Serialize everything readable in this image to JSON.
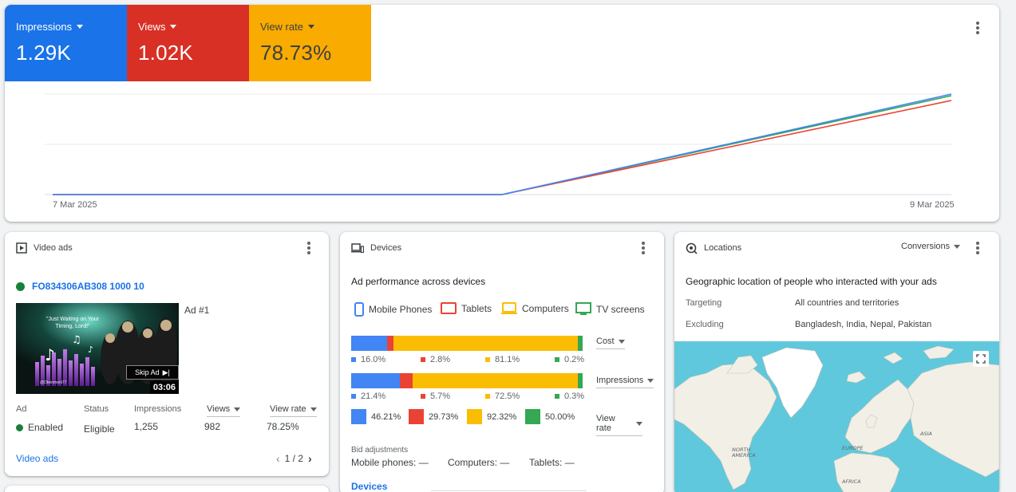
{
  "metrics": [
    {
      "label": "Impressions",
      "value": "1.29K",
      "color": "#1a73e8"
    },
    {
      "label": "Views",
      "value": "1.02K",
      "color": "#d93025"
    },
    {
      "label": "View rate",
      "value": "78.73%",
      "color": "#f9ab00"
    }
  ],
  "chart": {
    "x_start": "7 Mar 2025",
    "x_end": "9 Mar 2025"
  },
  "chart_data": {
    "type": "line",
    "x": [
      "7 Mar 2025",
      "8 Mar 2025",
      "9 Mar 2025"
    ],
    "series": [
      {
        "name": "Impressions",
        "color": "#4285f4",
        "values": [
          0,
          0,
          1290
        ]
      },
      {
        "name": "Views",
        "color": "#ea4335",
        "values": [
          0,
          0,
          1020
        ]
      },
      {
        "name": "View rate",
        "color": "#34a853",
        "values": [
          0,
          0,
          78.73
        ]
      }
    ],
    "grid": true
  },
  "video_ads": {
    "title": "Video ads",
    "campaign": "FO834306AB308 1000 10",
    "ad_label": "Ad #1",
    "thumb_caption": "\"Just Waiting on Your Timing, Lord!\"",
    "thumb_handle": "@Dbenmoni77",
    "skip_label": "Skip Ad",
    "duration": "03:06",
    "columns": [
      "Ad",
      "Status",
      "Impressions",
      "Views",
      "View rate"
    ],
    "row": {
      "ad": "Enabled",
      "status": "Eligible",
      "impressions": "1,255",
      "views": "982",
      "view_rate": "78.25%"
    },
    "footer_link": "Video ads",
    "pager": "1 / 2"
  },
  "devices": {
    "title": "Devices",
    "subtitle": "Ad performance across devices",
    "legend": [
      "Mobile Phones",
      "Tablets",
      "Computers",
      "TV screens"
    ],
    "colors": {
      "mobile": "#4285f4",
      "tablet": "#ea4335",
      "computer": "#fbbc04",
      "tv": "#34a853"
    },
    "cost": {
      "label": "Cost",
      "shares": [
        16.0,
        2.8,
        81.1,
        0.2
      ],
      "labels": [
        "16.0%",
        "2.8%",
        "81.1%",
        "0.2%"
      ]
    },
    "impressions": {
      "label": "Impressions",
      "shares": [
        21.4,
        5.7,
        72.5,
        0.3
      ],
      "labels": [
        "21.4%",
        "5.7%",
        "72.5%",
        "0.3%"
      ]
    },
    "view_rate": {
      "label": "View rate",
      "labels": [
        "46.21%",
        "29.73%",
        "92.32%",
        "50.00%"
      ]
    },
    "bid_title": "Bid adjustments",
    "bid_mobile": "Mobile phones: —",
    "bid_computers": "Computers: —",
    "bid_tablets": "Tablets: —",
    "footer_link": "Devices"
  },
  "locations": {
    "title": "Locations",
    "dropdown": "Conversions",
    "subtitle": "Geographic location of people who interacted with your ads",
    "targeting_label": "Targeting",
    "targeting_value": "All countries and territories",
    "excluding_label": "Excluding",
    "excluding_value": "Bangladesh, India, Nepal, Pakistan",
    "map_labels": {
      "na": "NORTH AMERICA",
      "eu": "EUROPE",
      "asia": "ASIA",
      "af": "AFRICA"
    }
  }
}
